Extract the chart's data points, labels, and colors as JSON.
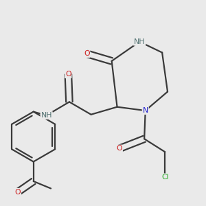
{
  "background_color": "#eaeaea",
  "bond_color": "#3a3a3a",
  "atom_colors": {
    "N": "#1a1acc",
    "NH": "#507070",
    "O": "#cc1a1a",
    "Cl": "#22aa22"
  },
  "bond_width": 1.6,
  "figsize": [
    3.0,
    3.0
  ],
  "dpi": 100
}
